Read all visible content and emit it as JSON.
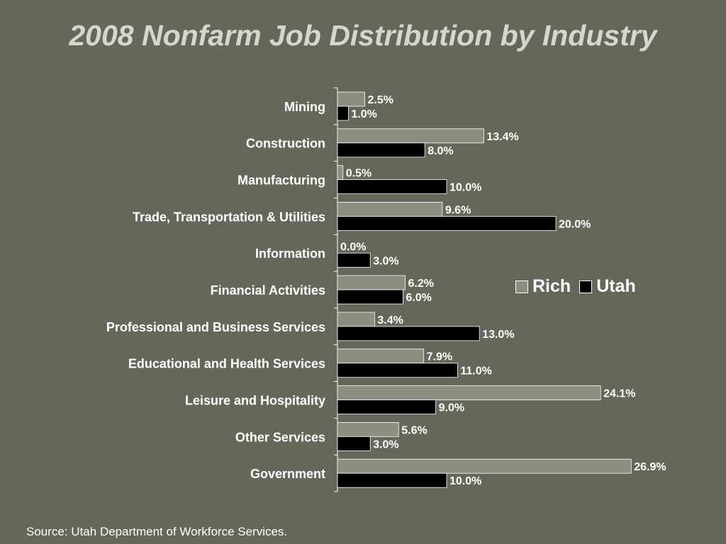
{
  "chart_data": {
    "type": "bar",
    "orientation": "horizontal",
    "title": "2008 Nonfarm Job Distribution by Industry",
    "categories": [
      "Mining",
      "Construction",
      "Manufacturing",
      "Trade, Transportation & Utilities",
      "Information",
      "Financial Activities",
      "Professional and Business Services",
      "Educational and Health Services",
      "Leisure and Hospitality",
      "Other Services",
      "Government"
    ],
    "series": [
      {
        "name": "Rich",
        "color": "#8d8d80",
        "values": [
          2.5,
          13.4,
          0.5,
          9.6,
          0.0,
          6.2,
          3.4,
          7.9,
          24.1,
          5.6,
          26.9
        ],
        "labels": [
          "2.5%",
          "13.4%",
          "0.5%",
          "9.6%",
          "0.0%",
          "6.2%",
          "3.4%",
          "7.9%",
          "24.1%",
          "5.6%",
          "26.9%"
        ]
      },
      {
        "name": "Utah",
        "color": "#000000",
        "values": [
          1.0,
          8.0,
          10.0,
          20.0,
          3.0,
          6.0,
          13.0,
          11.0,
          9.0,
          3.0,
          10.0
        ],
        "labels": [
          "1.0%",
          "8.0%",
          "10.0%",
          "20.0%",
          "3.0%",
          "6.0%",
          "13.0%",
          "11.0%",
          "9.0%",
          "3.0%",
          "10.0%"
        ]
      }
    ],
    "xlim": [
      0,
      30
    ],
    "grid": false,
    "legend_position": "right"
  },
  "footer": {
    "source": "Source: Utah Department of Workforce Services."
  }
}
